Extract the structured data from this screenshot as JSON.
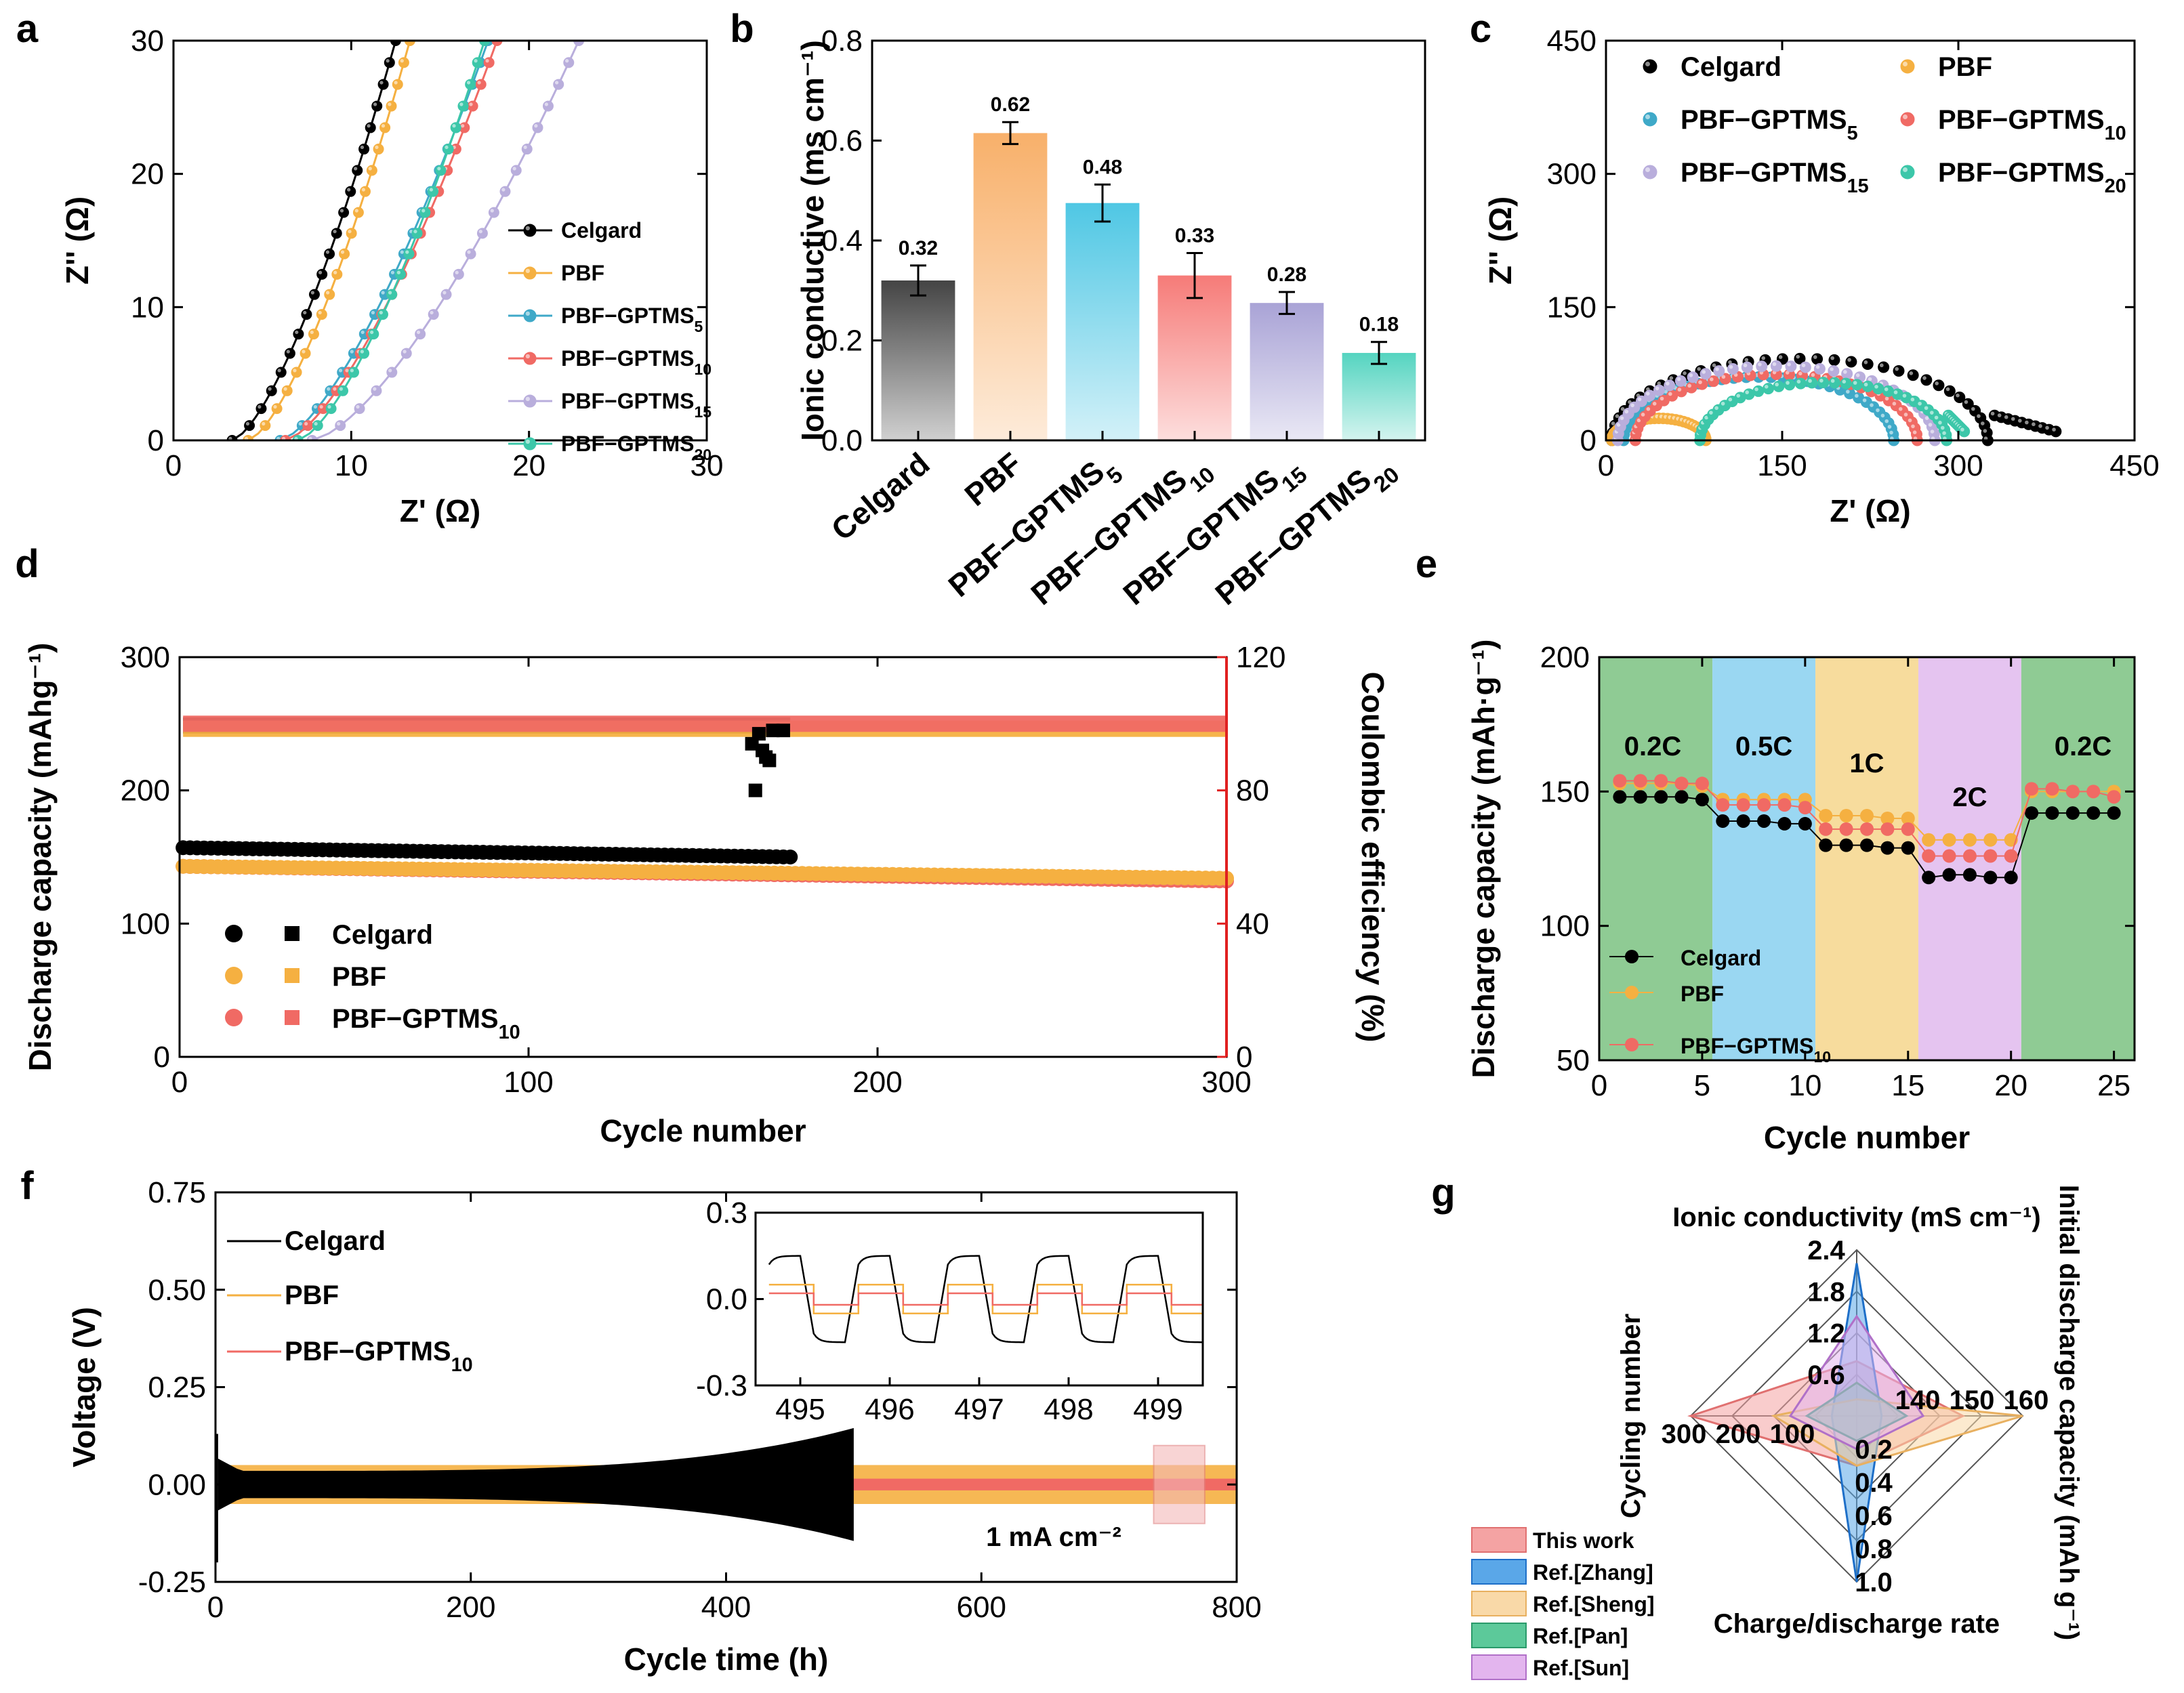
{
  "panels": {
    "a": "a",
    "b": "b",
    "c": "c",
    "d": "d",
    "e": "e",
    "f": "f",
    "g": "g"
  },
  "chart_data": [
    {
      "id": "a",
      "type": "scatter",
      "title": "",
      "xlabel": "Z' (Ω)",
      "ylabel": "Z'' (Ω)",
      "xlim": [
        0,
        30
      ],
      "ylim": [
        0,
        30
      ],
      "xticks": [
        "0",
        "10",
        "20",
        "30"
      ],
      "yticks": [
        "0",
        "10",
        "20",
        "30"
      ],
      "series": [
        {
          "name": "Celgard",
          "sub": "",
          "color": "#000000",
          "x0": 3.3,
          "x_top": 12.5
        },
        {
          "name": "PBF",
          "sub": "",
          "color": "#F5B041",
          "x0": 4.2,
          "x_top": 13.3
        },
        {
          "name": "PBF−GPTMS",
          "sub": "5",
          "color": "#3FA9C8",
          "x0": 6.0,
          "x_top": 17.7
        },
        {
          "name": "PBF−GPTMS",
          "sub": "10",
          "color": "#F06A64",
          "x0": 6.3,
          "x_top": 18.2
        },
        {
          "name": "PBF−GPTMS",
          "sub": "15",
          "color": "#B9AEDC",
          "x0": 7.8,
          "x_top": 22.8
        },
        {
          "name": "PBF−GPTMS",
          "sub": "20",
          "color": "#3CC7A9",
          "x0": 7.0,
          "x_top": 17.5
        }
      ]
    },
    {
      "id": "b",
      "type": "bar",
      "ylabel": "Ionic conductive (ms cm⁻¹)",
      "ylim": [
        0,
        0.8
      ],
      "yticks": [
        "0.0",
        "0.2",
        "0.4",
        "0.6",
        "0.8"
      ],
      "categories": [
        {
          "name": "Celgard",
          "sub": ""
        },
        {
          "name": "PBF",
          "sub": ""
        },
        {
          "name": "PBF−GPTMS",
          "sub": "5"
        },
        {
          "name": "PBF−GPTMS",
          "sub": "10"
        },
        {
          "name": "PBF−GPTMS",
          "sub": "15"
        },
        {
          "name": "PBF−GPTMS",
          "sub": "20"
        }
      ],
      "values": [
        0.32,
        0.62,
        0.48,
        0.33,
        0.28,
        0.18
      ],
      "bar_heights": [
        0.32,
        0.615,
        0.475,
        0.33,
        0.275,
        0.175
      ],
      "errors": [
        0.03,
        0.022,
        0.037,
        0.045,
        0.022,
        0.022
      ],
      "value_labels": [
        "0.32",
        "0.62",
        "0.48",
        "0.33",
        "0.28",
        "0.18"
      ],
      "colors": [
        "#444444",
        "#F8B06A",
        "#4FC7E4",
        "#F67B78",
        "#A9A3D6",
        "#54D4C0"
      ]
    },
    {
      "id": "c",
      "type": "scatter",
      "xlabel": "Z' (Ω)",
      "ylabel": "Z'' (Ω)",
      "xlim": [
        0,
        450
      ],
      "ylim": [
        0,
        450
      ],
      "xticks": [
        "0",
        "150",
        "300",
        "450"
      ],
      "yticks": [
        "0",
        "150",
        "300",
        "450"
      ],
      "series": [
        {
          "name": "Celgard",
          "sub": "",
          "color": "#000000",
          "r0": 5,
          "r1": 325,
          "tail": 383
        },
        {
          "name": "PBF",
          "sub": "",
          "color": "#F5B041",
          "r0": 5,
          "r1": 85,
          "tail": 85
        },
        {
          "name": "PBF−GPTMS",
          "sub": "5",
          "color": "#3FA9C8",
          "r0": 15,
          "r1": 245,
          "tail": 245
        },
        {
          "name": "PBF−GPTMS",
          "sub": "10",
          "color": "#F06A64",
          "r0": 25,
          "r1": 265,
          "tail": 265
        },
        {
          "name": "PBF−GPTMS",
          "sub": "15",
          "color": "#B9AEDC",
          "r0": 10,
          "r1": 280,
          "tail": 280
        },
        {
          "name": "PBF−GPTMS",
          "sub": "20",
          "color": "#3CC7A9",
          "r0": 80,
          "r1": 290,
          "tail": 305
        }
      ]
    },
    {
      "id": "d",
      "type": "scatter",
      "xlabel": "Cycle number",
      "ylabel": "Discharge capacity (mAhg⁻¹)",
      "ylabel2": "Coulombic efficiency (%)",
      "xlim": [
        0,
        300
      ],
      "ylim": [
        0,
        300
      ],
      "ylim2": [
        0,
        120
      ],
      "xticks": [
        "0",
        "100",
        "200",
        "300"
      ],
      "yticks": [
        "0",
        "100",
        "200",
        "300"
      ],
      "yticks2": [
        "0",
        "40",
        "80",
        "120"
      ],
      "series": [
        {
          "name": "Celgard",
          "sub": "",
          "color": "#000000",
          "cycles": [
            1,
            175
          ],
          "capacity": [
            157,
            150
          ],
          "ce": 99.5
        },
        {
          "name": "PBF",
          "sub": "",
          "color": "#F5B041",
          "cycles": [
            1,
            300
          ],
          "capacity": [
            143,
            134
          ],
          "ce": 98.5
        },
        {
          "name": "PBF−GPTMS",
          "sub": "10",
          "color": "#F06A64",
          "cycles": [
            1,
            300
          ],
          "capacity": [
            143,
            132
          ],
          "ce": 100
        }
      ],
      "outliers_celgard_ce": [
        [
          164,
          94
        ],
        [
          165,
          80
        ],
        [
          166,
          97
        ],
        [
          167,
          92
        ],
        [
          168,
          90
        ],
        [
          169,
          89
        ],
        [
          170,
          98
        ],
        [
          173,
          98
        ]
      ]
    },
    {
      "id": "e",
      "type": "line",
      "xlabel": "Cycle number",
      "ylabel": "Discharge capacity (mAh·g⁻¹)",
      "xlim": [
        0,
        26
      ],
      "ylim": [
        50,
        200
      ],
      "xticks": [
        "0",
        "5",
        "10",
        "15",
        "20",
        "25"
      ],
      "yticks": [
        "50",
        "100",
        "150",
        "200"
      ],
      "rates": [
        {
          "label": "0.2C",
          "from": 0,
          "to": 5.5,
          "color": "#8FCB94"
        },
        {
          "label": "0.5C",
          "from": 5.5,
          "to": 10.5,
          "color": "#9AD7F2"
        },
        {
          "label": "1C",
          "from": 10.5,
          "to": 15.5,
          "color": "#F7DC9D"
        },
        {
          "label": "2C",
          "from": 15.5,
          "to": 20.5,
          "color": "#E5C4F0"
        },
        {
          "label": "0.2C",
          "from": 20.5,
          "to": 26,
          "color": "#8FCB94"
        }
      ],
      "series": [
        {
          "name": "Celgard",
          "sub": "",
          "color": "#000000",
          "values": [
            148,
            148,
            148,
            148,
            147,
            139,
            139,
            139,
            138,
            138,
            130,
            130,
            130,
            129,
            129,
            118,
            119,
            119,
            118,
            118,
            142,
            142,
            142,
            142,
            142
          ]
        },
        {
          "name": "PBF",
          "sub": "",
          "color": "#F5B041",
          "values": [
            153,
            153,
            153,
            153,
            152,
            147,
            147,
            147,
            147,
            147,
            141,
            141,
            141,
            140,
            140,
            132,
            132,
            132,
            132,
            132,
            150,
            150,
            150,
            150,
            150
          ]
        },
        {
          "name": "PBF−GPTMS",
          "sub": "10",
          "color": "#F06A64",
          "values": [
            154,
            154,
            154,
            153,
            153,
            145,
            145,
            145,
            145,
            144,
            136,
            136,
            136,
            136,
            136,
            126,
            126,
            126,
            126,
            126,
            151,
            151,
            150,
            150,
            148
          ]
        }
      ]
    },
    {
      "id": "f",
      "type": "line",
      "xlabel": "Cycle time (h)",
      "ylabel": "Voltage (V)",
      "xlim": [
        0,
        800
      ],
      "ylim": [
        -0.25,
        0.75
      ],
      "xticks": [
        "0",
        "200",
        "400",
        "600",
        "800"
      ],
      "yticks": [
        "-0.25",
        "0.00",
        "0.25",
        "0.50",
        "0.75"
      ],
      "annotation": "1 mA cm⁻²",
      "series": [
        {
          "name": "Celgard",
          "sub": "",
          "color": "#000000",
          "end_h": 500
        },
        {
          "name": "PBF",
          "sub": "",
          "color": "#F5B041",
          "end_h": 800,
          "amplitude": 0.05
        },
        {
          "name": "PBF−GPTMS",
          "sub": "10",
          "color": "#F06A64",
          "end_h": 800,
          "amplitude": 0.015
        }
      ],
      "inset": {
        "xlim": [
          494.5,
          499.5
        ],
        "ylim": [
          -0.3,
          0.3
        ],
        "xticks": [
          "495",
          "496",
          "497",
          "498",
          "499"
        ],
        "yticks": [
          "-0.3",
          "0.0",
          "0.3"
        ],
        "amplitudes": {
          "Celgard": 0.15,
          "PBF": 0.05,
          "PBF−GPTMS10": 0.02
        }
      }
    },
    {
      "id": "g",
      "type": "radar",
      "axes": [
        {
          "label": "Ionic conductivity (mS cm⁻¹)",
          "ticks": [
            "0.6",
            "1.2",
            "1.8",
            "2.4"
          ],
          "max": 2.4
        },
        {
          "label": "Initial discharge capacity (mAh g⁻¹)",
          "ticks": [
            "140",
            "150",
            "160"
          ],
          "max": 160
        },
        {
          "label": "Charge/discharge rate",
          "ticks": [
            "0.2",
            "0.4",
            "0.6",
            "0.8",
            "1.0"
          ],
          "max": 1.0
        },
        {
          "label": "Cycling number",
          "ticks": [
            "100",
            "200",
            "300"
          ],
          "max": 300
        }
      ],
      "series": [
        {
          "name": "This work",
          "color": "#F4A3A3",
          "stroke": "#E07070",
          "values": [
            0.33,
            0.64,
            0.3,
            1.0
          ]
        },
        {
          "name": "Ref.[Zhang]",
          "color": "#5AA7E8",
          "stroke": "#1E6FC8",
          "values": [
            0.92,
            0.15,
            1.0,
            0.15
          ]
        },
        {
          "name": "Ref.[Sheng]",
          "color": "#F9D9A8",
          "stroke": "#E8B060",
          "values": [
            0.1,
            1.0,
            0.3,
            0.5
          ]
        },
        {
          "name": "Ref.[Pan]",
          "color": "#5CC99A",
          "stroke": "#2A9A6A",
          "values": [
            0.2,
            0.3,
            0.15,
            0.3
          ]
        },
        {
          "name": "Ref.[Sun]",
          "color": "#E3B5EE",
          "stroke": "#B070C8",
          "values": [
            0.6,
            0.4,
            0.2,
            0.4
          ]
        }
      ]
    }
  ]
}
